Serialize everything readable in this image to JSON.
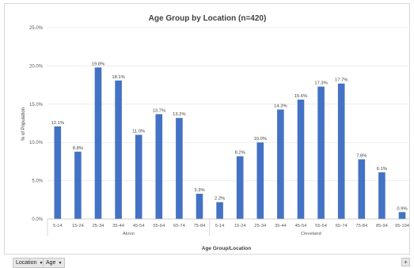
{
  "chart_data": {
    "type": "bar",
    "title": "Age Group by Location (n=420)",
    "xlabel": "Age Group/Location",
    "ylabel": "% of Population",
    "ylim": [
      0,
      25
    ],
    "yticks": [
      "0.0%",
      "5.0%",
      "10.0%",
      "15.0%",
      "20.0%",
      "25.0%"
    ],
    "grid": true,
    "bar_color": "#4472c4",
    "groups": [
      {
        "name": "Akron",
        "categories": [
          "5-14",
          "15-24",
          "25-34",
          "35-44",
          "45-54",
          "55-64",
          "65-74",
          "75-84"
        ],
        "values": [
          12.1,
          8.8,
          19.8,
          18.1,
          11.0,
          13.7,
          13.2,
          3.3
        ],
        "labels": [
          "12.1%",
          "8.8%",
          "19.8%",
          "18.1%",
          "11.0%",
          "13.7%",
          "13.2%",
          "3.3%"
        ]
      },
      {
        "name": "Cleveland",
        "categories": [
          "5-14",
          "15-24",
          "25-34",
          "35-44",
          "45-54",
          "55-64",
          "65-74",
          "75-84",
          "85-94",
          "95-104"
        ],
        "values": [
          2.2,
          8.2,
          10.0,
          14.3,
          15.6,
          17.3,
          17.7,
          7.8,
          6.1,
          0.9
        ],
        "labels": [
          "2.2%",
          "8.2%",
          "10.0%",
          "14.3%",
          "15.6%",
          "17.3%",
          "17.7%",
          "7.8%",
          "6.1%",
          "0.9%"
        ]
      }
    ]
  },
  "pivot_fields": [
    {
      "label": "Location",
      "icon": "dropdown-arrow-icon"
    },
    {
      "label": "Age",
      "icon": "dropdown-arrow-icon"
    }
  ],
  "corner_button": {
    "label": "+",
    "icon": "expand-icon"
  }
}
